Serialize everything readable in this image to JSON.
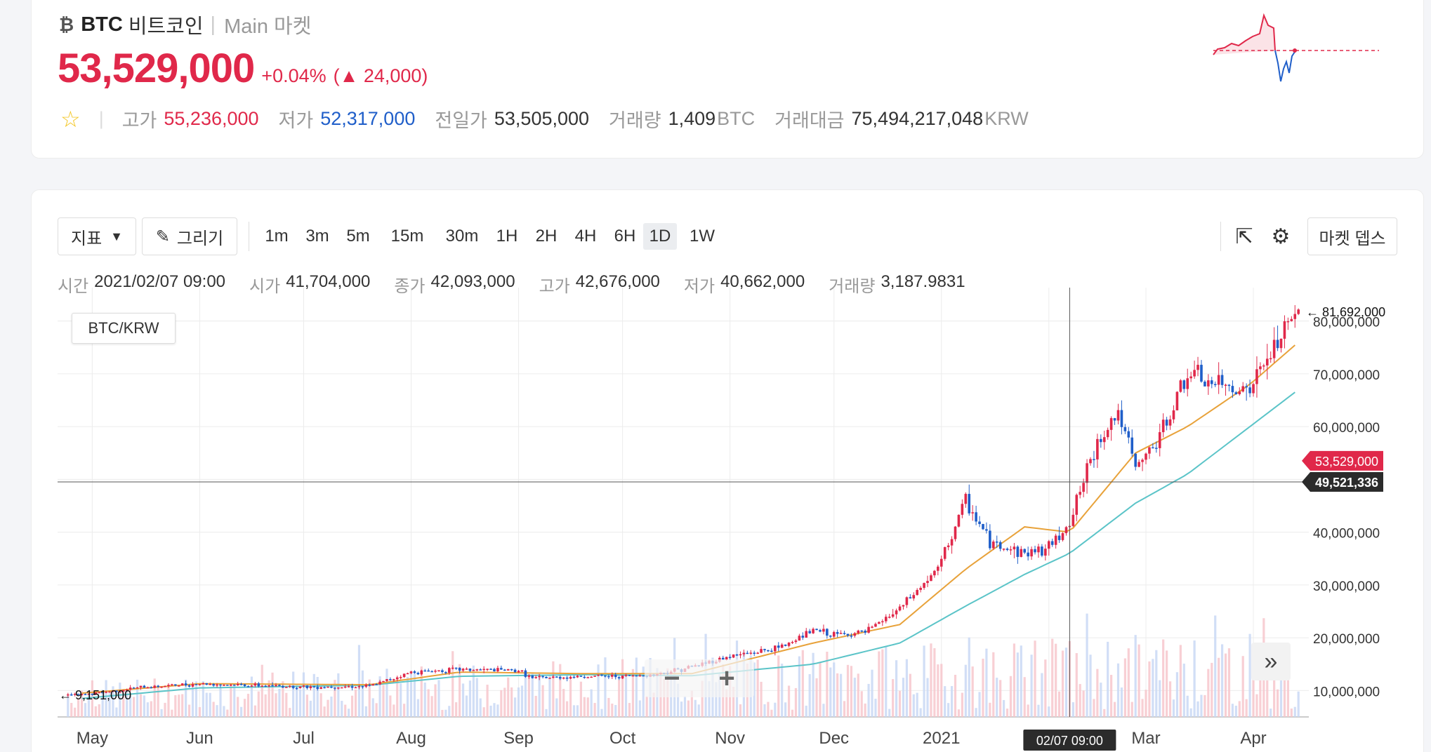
{
  "header": {
    "coin_symbol": "BTC",
    "coin_name": "비트코인",
    "divider": "|",
    "market": "Main 마켓",
    "price": "53,529,000",
    "change_pct": "+0.04%",
    "change_amt": "(▲ 24,000)",
    "stats": {
      "high_label": "고가",
      "high": "55,236,000",
      "low_label": "저가",
      "low": "52,317,000",
      "prev_label": "전일가",
      "prev": "53,505,000",
      "vol_label": "거래량",
      "vol": "1,409",
      "vol_unit": "BTC",
      "amt_label": "거래대금",
      "amt": "75,494,217,048",
      "amt_unit": "KRW"
    }
  },
  "toolbar": {
    "indicator_label": "지표",
    "draw_label": "그리기",
    "timeframes": [
      "1m",
      "3m",
      "5m",
      "15m",
      "30m",
      "1H",
      "2H",
      "4H",
      "6H",
      "1D",
      "1W"
    ],
    "active_timeframe": "1D",
    "market_depth_label": "마켓 뎁스"
  },
  "ohlc": {
    "time_label": "시간",
    "time": "2021/02/07 09:00",
    "open_label": "시가",
    "open": "41,704,000",
    "close_label": "종가",
    "close": "42,093,000",
    "high_label": "고가",
    "high": "42,676,000",
    "low_label": "저가",
    "low": "40,662,000",
    "vol_label": "거래량",
    "vol": "3,187.9831"
  },
  "chart_data": {
    "type": "line",
    "pair": "BTC/KRW",
    "x_ticks": [
      "May",
      "Jun",
      "Jul",
      "Aug",
      "Sep",
      "Oct",
      "Nov",
      "Dec",
      "2021",
      "Mar",
      "Apr"
    ],
    "y_ticks": [
      "80,000,000",
      "70,000,000",
      "60,000,000",
      "50,000,000",
      "40,000,000",
      "30,000,000",
      "20,000,000",
      "10,000,000"
    ],
    "y_tick_values": [
      80000000,
      70000000,
      60000000,
      50000000,
      40000000,
      30000000,
      20000000,
      10000000
    ],
    "ylim": [
      5000000,
      85000000
    ],
    "high_marker": "← 81,692,000",
    "low_marker": "← 9,151,000",
    "current_price_label": "53,529,000",
    "crosshair_price_label": "49,521,336",
    "crosshair_time_label": "02/07 09:00",
    "series": [
      {
        "name": "",
        "color": "#333333",
        "x": [
          "2020-04-28",
          "2020-05-15",
          "2020-06-01",
          "2020-06-15",
          "2020-07-01",
          "2020-07-20",
          "2020-08-01",
          "2020-08-15",
          "2020-09-01",
          "2020-09-05",
          "2020-09-20",
          "2020-10-01",
          "2020-10-10",
          "2020-10-21",
          "2020-11-01",
          "2020-11-15",
          "2020-11-25",
          "2020-12-01",
          "2020-12-10",
          "2020-12-20",
          "2020-12-31",
          "2021-01-08",
          "2021-01-15",
          "2021-01-25",
          "2021-02-01",
          "2021-02-07",
          "2021-02-15",
          "2021-02-21",
          "2021-02-26",
          "2021-03-05",
          "2021-03-13",
          "2021-03-20",
          "2021-03-31",
          "2021-04-08",
          "2021-04-14"
        ],
        "values": [
          9151000,
          10600000,
          11300000,
          11000000,
          10700000,
          10800000,
          13500000,
          14000000,
          13800000,
          12300000,
          12700000,
          12700000,
          13000000,
          14500000,
          16500000,
          18000000,
          21500000,
          20500000,
          21000000,
          25500000,
          33000000,
          46000000,
          38000000,
          36000000,
          37000000,
          42093000,
          57000000,
          63000000,
          52000000,
          58000000,
          70000000,
          68000000,
          67000000,
          76000000,
          81692000
        ]
      },
      {
        "name": "",
        "color": "#e8a23a",
        "x": [
          "2020-04-28",
          "2020-06-01",
          "2020-07-20",
          "2020-08-15",
          "2020-09-20",
          "2020-10-21",
          "2020-11-25",
          "2020-12-20",
          "2021-01-08",
          "2021-01-25",
          "2021-02-07",
          "2021-02-26",
          "2021-03-13",
          "2021-03-31",
          "2021-04-14"
        ],
        "values": [
          9500000,
          11300000,
          11100000,
          13500000,
          13200000,
          13200000,
          19000000,
          22500000,
          33000000,
          41000000,
          40000000,
          55000000,
          60000000,
          68000000,
          76000000
        ]
      },
      {
        "name": "",
        "color": "#5bc4c8",
        "x": [
          "2020-04-28",
          "2020-06-01",
          "2020-07-20",
          "2020-08-15",
          "2020-09-20",
          "2020-10-21",
          "2020-11-25",
          "2020-12-20",
          "2021-01-08",
          "2021-01-25",
          "2021-02-07",
          "2021-02-26",
          "2021-03-13",
          "2021-03-31",
          "2021-04-14"
        ],
        "values": [
          8500000,
          10500000,
          11000000,
          12700000,
          13000000,
          12800000,
          15000000,
          19000000,
          26000000,
          32000000,
          36000000,
          45500000,
          51000000,
          60000000,
          67000000
        ]
      }
    ]
  }
}
